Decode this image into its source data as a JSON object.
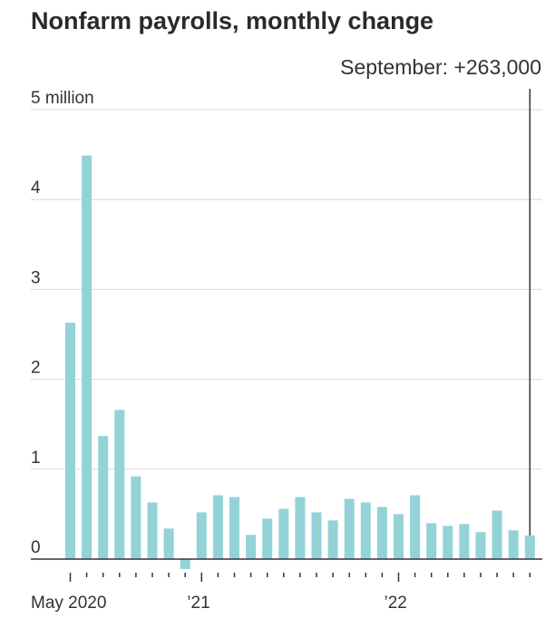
{
  "chart_data": {
    "type": "bar",
    "title": "Nonfarm payrolls, monthly change",
    "unit": "millions of jobs",
    "ylim": [
      -0.1,
      5
    ],
    "y_ticks": [
      {
        "value": 5,
        "label": "5 million"
      },
      {
        "value": 4,
        "label": "4"
      },
      {
        "value": 3,
        "label": "3"
      },
      {
        "value": 2,
        "label": "2"
      },
      {
        "value": 1,
        "label": "1"
      },
      {
        "value": 0,
        "label": "0"
      }
    ],
    "x_labels": [
      {
        "index": 0,
        "label": "May 2020"
      },
      {
        "index": 8,
        "label": "’21"
      },
      {
        "index": 20,
        "label": "’22"
      }
    ],
    "categories": [
      "May 2020",
      "Jun 2020",
      "Jul 2020",
      "Aug 2020",
      "Sep 2020",
      "Oct 2020",
      "Nov 2020",
      "Dec 2020",
      "Jan 2021",
      "Feb 2021",
      "Mar 2021",
      "Apr 2021",
      "May 2021",
      "Jun 2021",
      "Jul 2021",
      "Aug 2021",
      "Sep 2021",
      "Oct 2021",
      "Nov 2021",
      "Dec 2021",
      "Jan 2022",
      "Feb 2022",
      "Mar 2022",
      "Apr 2022",
      "May 2022",
      "Jun 2022",
      "Jul 2022",
      "Aug 2022",
      "Sep 2022"
    ],
    "values": [
      2.63,
      4.49,
      1.37,
      1.66,
      0.92,
      0.63,
      0.34,
      -0.11,
      0.52,
      0.71,
      0.69,
      0.27,
      0.45,
      0.56,
      0.69,
      0.52,
      0.43,
      0.67,
      0.63,
      0.58,
      0.5,
      0.71,
      0.4,
      0.37,
      0.39,
      0.3,
      0.54,
      0.32,
      0.263
    ],
    "bar_color": "#93d3d7",
    "annotation": {
      "index": 28,
      "label": "September: +263,000"
    }
  }
}
